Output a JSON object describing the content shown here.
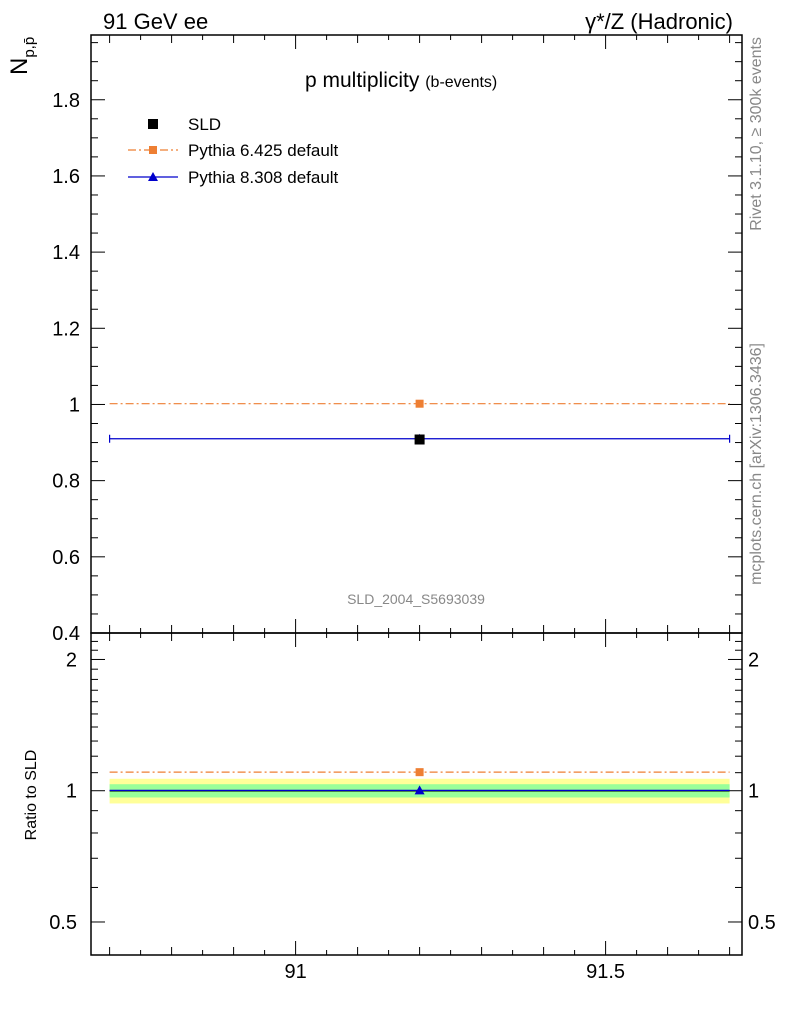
{
  "header": {
    "left": "91 GeV ee",
    "right": "γ*/Z (Hadronic)"
  },
  "side_labels": {
    "rivet": "Rivet 3.1.10, ≥ 300k events",
    "source": "mcplots.cern.ch [arXiv:1306.3436]"
  },
  "chart_data": [
    {
      "type": "line",
      "title": "p multiplicity",
      "subtitle": "(b-events)",
      "ylabel_main": "N",
      "ylabel_sub": "p,p̄",
      "watermark": "SLD_2004_S5693039",
      "ylim": [
        0.4,
        1.97
      ],
      "yticks": [
        0.4,
        0.6,
        0.8,
        1,
        1.2,
        1.4,
        1.6,
        1.8
      ],
      "ytick_labels": [
        "0.4",
        "0.6",
        "0.8",
        "1",
        "1.2",
        "1.4",
        "1.6",
        "1.8"
      ],
      "xlim": [
        90.67,
        91.72
      ],
      "legend_position": "top-left",
      "series": [
        {
          "name": "SLD",
          "color": "#000000",
          "marker": "square",
          "style": "points",
          "x": [
            91.2
          ],
          "y": [
            0.908
          ],
          "xerr": [
            91.2,
            91.2
          ]
        },
        {
          "name": "Pythia 6.425 default",
          "color": "#ee7f33",
          "marker": "square",
          "style": "dashdot",
          "x": [
            91.2
          ],
          "y": [
            1.002
          ],
          "xrange": [
            90.7,
            91.7
          ]
        },
        {
          "name": "Pythia 8.308 default",
          "color": "#0000cc",
          "marker": "triangle",
          "style": "solid",
          "x": [
            91.2
          ],
          "y": [
            0.91
          ],
          "xrange": [
            90.7,
            91.7
          ]
        }
      ]
    },
    {
      "type": "line",
      "ylabel": "Ratio to SLD",
      "ylim": [
        0.42,
        2.3
      ],
      "log_y": true,
      "yticks": [
        0.5,
        1,
        2
      ],
      "ytick_labels": [
        "0.5",
        "1",
        "2"
      ],
      "xlim": [
        90.67,
        91.72
      ],
      "xticks": [
        91,
        91.5
      ],
      "xtick_labels": [
        "91",
        "91.5"
      ],
      "bands": [
        {
          "color": "#ffff99",
          "lo": 0.935,
          "hi": 1.065
        },
        {
          "color": "#99ff99",
          "lo": 0.965,
          "hi": 1.035
        }
      ],
      "series": [
        {
          "name": "SLD",
          "color": "#000000",
          "style": "solid",
          "x": [
            91.2
          ],
          "y": [
            1.0
          ],
          "xrange": [
            90.7,
            91.7
          ]
        },
        {
          "name": "Pythia 6.425 default",
          "color": "#ee7f33",
          "marker": "square",
          "style": "dashdot",
          "x": [
            91.2
          ],
          "y": [
            1.103
          ],
          "xrange": [
            90.7,
            91.7
          ]
        },
        {
          "name": "Pythia 8.308 default",
          "color": "#0000cc",
          "marker": "triangle",
          "style": "solid",
          "x": [
            91.2
          ],
          "y": [
            1.002
          ],
          "xrange": [
            90.7,
            91.7
          ]
        }
      ]
    }
  ]
}
